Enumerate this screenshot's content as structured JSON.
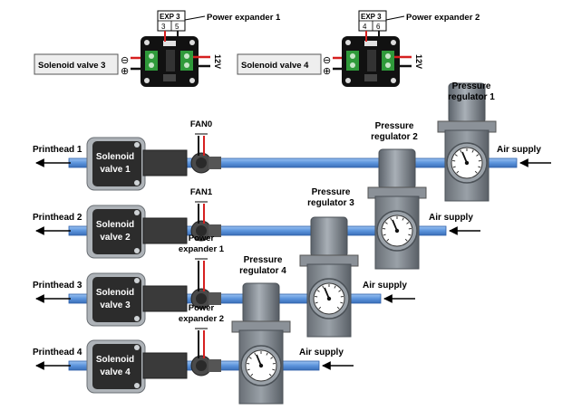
{
  "expanders": [
    {
      "exp_label": "EXP 3",
      "pins": [
        "3",
        "5"
      ],
      "caption": "Power expander 1",
      "valve_label": "Solenoid valve 3",
      "voltage": "12V",
      "minus": "⊖",
      "plus": "⊕"
    },
    {
      "exp_label": "EXP 3",
      "pins": [
        "4",
        "6"
      ],
      "caption": "Power expander 2",
      "valve_label": "Solenoid valve 4",
      "voltage": "12V",
      "minus": "⊖",
      "plus": "⊕"
    }
  ],
  "rows": [
    {
      "printhead": "Printhead 1",
      "valve": [
        "Solenoid",
        "valve 1"
      ],
      "connector": [
        "FAN0"
      ],
      "regulator": [
        "Pressure",
        "regulator 1"
      ],
      "supply": "Air supply"
    },
    {
      "printhead": "Printhead 2",
      "valve": [
        "Solenoid",
        "valve 2"
      ],
      "connector": [
        "FAN1"
      ],
      "regulator": [
        "Pressure",
        "regulator 2"
      ],
      "supply": "Air supply"
    },
    {
      "printhead": "Printhead 3",
      "valve": [
        "Solenoid",
        "valve 3"
      ],
      "connector": [
        "Power",
        "expander 1"
      ],
      "regulator": [
        "Pressure",
        "regulator 3"
      ],
      "supply": "Air supply"
    },
    {
      "printhead": "Printhead 4",
      "valve": [
        "Solenoid",
        "valve 4"
      ],
      "connector": [
        "Power",
        "expander 2"
      ],
      "regulator": [
        "Pressure",
        "regulator 4"
      ],
      "supply": "Air supply"
    }
  ],
  "colors": {
    "tube": "#6a9fe0",
    "tube_edge": "#2d5ea8",
    "regulator": "#7d8590",
    "valve_body": "#3a3a3a",
    "wire_red": "#d62020",
    "wire_black": "#111111",
    "board": "#111111",
    "terminal": "#2f9a3a"
  }
}
